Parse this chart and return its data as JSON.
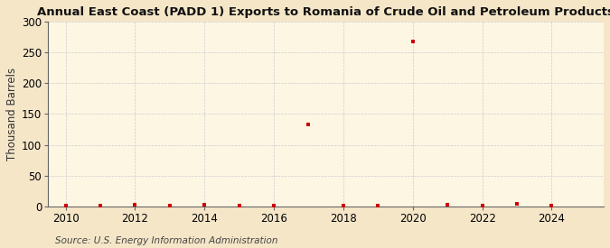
{
  "title": "Annual East Coast (PADD 1) Exports to Romania of Crude Oil and Petroleum Products",
  "ylabel": "Thousand Barrels",
  "source": "Source: U.S. Energy Information Administration",
  "background_color": "#f5e6c8",
  "plot_background_color": "#fdf6e3",
  "grid_color": "#cccccc",
  "spine_color": "#666666",
  "marker_color": "#cc0000",
  "years": [
    2010,
    2011,
    2012,
    2013,
    2014,
    2015,
    2016,
    2017,
    2018,
    2019,
    2020,
    2021,
    2022,
    2023,
    2024
  ],
  "values": [
    1,
    1,
    2,
    1,
    3,
    1,
    1,
    133,
    1,
    1,
    268,
    2,
    1,
    4,
    1
  ],
  "xlim": [
    2009.5,
    2025.5
  ],
  "ylim": [
    0,
    300
  ],
  "yticks": [
    0,
    50,
    100,
    150,
    200,
    250,
    300
  ],
  "xticks": [
    2010,
    2012,
    2014,
    2016,
    2018,
    2020,
    2022,
    2024
  ],
  "title_fontsize": 9.5,
  "axis_fontsize": 8.5,
  "source_fontsize": 7.5
}
